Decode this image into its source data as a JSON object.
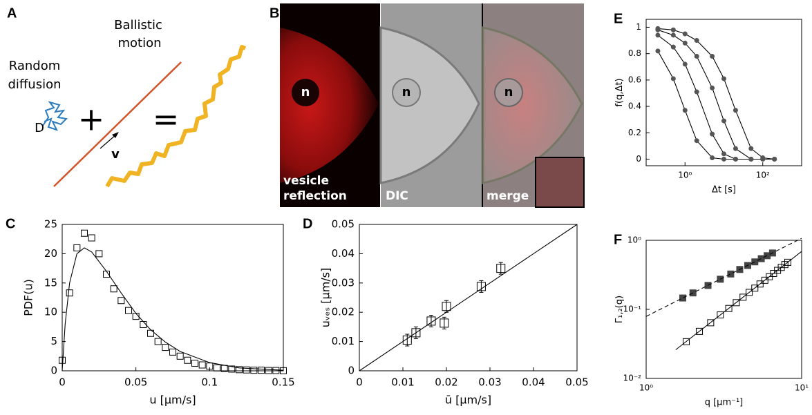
{
  "diagram": {
    "label": "A",
    "diffusion": [
      "Random",
      "diffusion"
    ],
    "ballistic": [
      "Ballistic",
      "motion"
    ],
    "D": "D",
    "v": "v",
    "plus": "+",
    "equals": "="
  },
  "images": {
    "label": "B",
    "nucleus": "n",
    "captions": [
      [
        "vesicle",
        "reflection"
      ],
      [
        "DIC"
      ],
      [
        "merge"
      ]
    ]
  },
  "chart_data": [
    {
      "type": "scatter",
      "panel_label": "C",
      "xlabel": "u [μm/s]",
      "ylabel": "PDF(u)",
      "xlim": [
        0,
        0.15
      ],
      "ylim": [
        0,
        25
      ],
      "xticks": [
        0,
        0.05,
        0.1,
        0.15
      ],
      "yticks": [
        0,
        5,
        10,
        15,
        20,
        25
      ],
      "series": [
        {
          "mode": "markers",
          "marker": "square",
          "color": "#000000",
          "x": [
            0,
            0.005,
            0.01,
            0.015,
            0.02,
            0.025,
            0.03,
            0.035,
            0.04,
            0.045,
            0.05,
            0.055,
            0.06,
            0.065,
            0.07,
            0.075,
            0.08,
            0.085,
            0.09,
            0.095,
            0.1,
            0.105,
            0.11,
            0.115,
            0.12,
            0.125,
            0.13,
            0.135,
            0.14,
            0.145,
            0.15
          ],
          "values": [
            1.8,
            13.3,
            21,
            23.5,
            22.7,
            20,
            16.5,
            14,
            12,
            10.3,
            9.3,
            7.9,
            6.4,
            5,
            4,
            3.2,
            2.5,
            1.8,
            1.3,
            1,
            0.8,
            0.5,
            0.4,
            0.3,
            0.2,
            0.15,
            0.1,
            0.1,
            0.05,
            0.05,
            0.02
          ]
        },
        {
          "mode": "line",
          "color": "#000000",
          "x": [
            0,
            0.002,
            0.005,
            0.01,
            0.015,
            0.02,
            0.03,
            0.04,
            0.05,
            0.06,
            0.07,
            0.08,
            0.1,
            0.12,
            0.15
          ],
          "values": [
            0,
            8,
            15,
            20,
            21,
            20.3,
            17,
            13.3,
            9.8,
            7,
            4.9,
            3.3,
            1.4,
            0.5,
            0.1
          ]
        }
      ]
    },
    {
      "type": "scatter",
      "panel_label": "D",
      "xlabel": "ū [μm/s]",
      "ylabel": "uᵥₑₛ [μm/s]",
      "xlim": [
        0,
        0.05
      ],
      "ylim": [
        0,
        0.05
      ],
      "xticks": [
        0,
        0.01,
        0.02,
        0.03,
        0.04,
        0.05
      ],
      "yticks": [
        0,
        0.01,
        0.02,
        0.03,
        0.04,
        0.05
      ],
      "series": [
        {
          "mode": "markers",
          "marker": "square",
          "color": "#000000",
          "x": [
            0.011,
            0.013,
            0.0165,
            0.0195,
            0.02,
            0.028,
            0.0325
          ],
          "values": [
            0.0105,
            0.013,
            0.017,
            0.0163,
            0.022,
            0.0288,
            0.035
          ],
          "error": [
            0.002,
            0.002,
            0.002,
            0.002,
            0.002,
            0.002,
            0.002
          ]
        },
        {
          "mode": "line",
          "color": "#000000",
          "x": [
            0,
            0.05
          ],
          "values": [
            0,
            0.05
          ]
        }
      ]
    },
    {
      "type": "line",
      "panel_label": "E",
      "xlabel": "Δt [s]",
      "ylabel": "f(q,Δt)",
      "xlog": true,
      "xlim": [
        0.1,
        1000
      ],
      "ylim": [
        -0.05,
        1.06
      ],
      "xticks": [
        {
          "value": 1,
          "label": "10⁰"
        },
        {
          "value": 100,
          "label": "10²"
        }
      ],
      "yticks": [
        0,
        0.2,
        0.4,
        0.6,
        0.8,
        1
      ],
      "series": [
        {
          "mode": "lines+markers",
          "marker": "circle",
          "color": "#555555",
          "x": [
            0.2,
            0.5,
            1,
            2,
            5,
            10,
            20,
            50,
            100,
            200
          ],
          "values": [
            0.82,
            0.61,
            0.37,
            0.14,
            0.01,
            0,
            0,
            0,
            0,
            0
          ]
        },
        {
          "mode": "lines+markers",
          "marker": "circle",
          "color": "#555555",
          "x": [
            0.2,
            0.5,
            1,
            2,
            5,
            10,
            20,
            50,
            100,
            200
          ],
          "values": [
            0.94,
            0.85,
            0.72,
            0.51,
            0.19,
            0.04,
            0,
            0,
            0,
            0
          ]
        },
        {
          "mode": "lines+markers",
          "marker": "circle",
          "color": "#555555",
          "x": [
            0.2,
            0.5,
            1,
            2,
            5,
            10,
            20,
            50,
            100,
            200
          ],
          "values": [
            0.98,
            0.94,
            0.88,
            0.78,
            0.54,
            0.29,
            0.08,
            0,
            0,
            0
          ]
        },
        {
          "mode": "lines+markers",
          "marker": "circle",
          "color": "#555555",
          "x": [
            0.2,
            0.5,
            1,
            2,
            5,
            10,
            20,
            50,
            100,
            200
          ],
          "values": [
            0.99,
            0.98,
            0.95,
            0.9,
            0.78,
            0.61,
            0.37,
            0.08,
            0.01,
            0
          ]
        }
      ]
    },
    {
      "type": "scatter",
      "panel_label": "F",
      "xlabel": "q [μm⁻¹]",
      "ylabel": "Γ₁,₂(q)",
      "xlog": true,
      "ylog": true,
      "xlim": [
        1,
        10
      ],
      "ylim": [
        0.01,
        1
      ],
      "xticks": [
        {
          "value": 1,
          "label": "10⁰"
        },
        {
          "value": 10,
          "label": "10¹"
        }
      ],
      "yticks": [
        {
          "value": 0.01,
          "label": "10⁻²"
        },
        {
          "value": 0.1,
          "label": "10⁻¹"
        },
        {
          "value": 1,
          "label": "10⁰"
        }
      ],
      "series": [
        {
          "mode": "markers",
          "marker": "square-filled",
          "color": "#444444",
          "x": [
            1.72,
            2,
            2.5,
            3,
            3.5,
            4,
            4.5,
            5,
            5.5,
            6,
            6.5
          ],
          "values": [
            0.146,
            0.173,
            0.222,
            0.273,
            0.325,
            0.378,
            0.432,
            0.487,
            0.542,
            0.598,
            0.655
          ]
        },
        {
          "mode": "line",
          "dash": true,
          "color": "#000000",
          "x": [
            1,
            10
          ],
          "values": [
            0.079,
            1.07
          ]
        },
        {
          "mode": "markers",
          "marker": "square",
          "color": "#000000",
          "x": [
            1.81,
            2.2,
            2.6,
            3,
            3.4,
            3.8,
            4.2,
            4.6,
            5,
            5.4,
            5.8,
            6.2,
            6.6,
            7,
            7.4,
            7.8,
            8.15
          ],
          "values": [
            0.034,
            0.048,
            0.064,
            0.083,
            0.103,
            0.125,
            0.15,
            0.176,
            0.203,
            0.233,
            0.264,
            0.297,
            0.331,
            0.367,
            0.405,
            0.445,
            0.48
          ]
        },
        {
          "mode": "line",
          "color": "#000000",
          "x": [
            1.55,
            10
          ],
          "values": [
            0.026,
            0.69
          ]
        }
      ]
    }
  ]
}
